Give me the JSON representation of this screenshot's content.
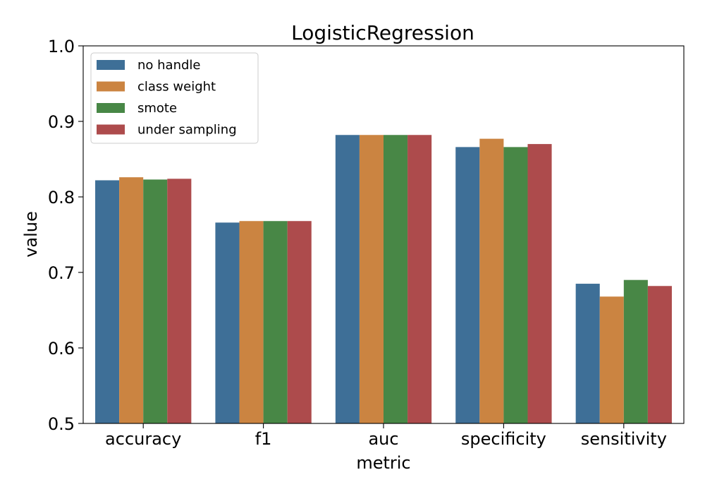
{
  "chart_data": {
    "type": "bar",
    "title": "LogisticRegression",
    "xlabel": "metric",
    "ylabel": "value",
    "ylim": [
      0.5,
      1.0
    ],
    "yticks": [
      "0.5",
      "0.6",
      "0.7",
      "0.8",
      "0.9",
      "1.0"
    ],
    "grid": false,
    "legend_position": "top-left",
    "categories": [
      "accuracy",
      "f1",
      "auc",
      "specificity",
      "sensitivity"
    ],
    "series": [
      {
        "name": "no handle",
        "color": "#3e6f97",
        "values": [
          0.822,
          0.766,
          0.882,
          0.866,
          0.685
        ]
      },
      {
        "name": "class weight",
        "color": "#cb8441",
        "values": [
          0.826,
          0.768,
          0.882,
          0.877,
          0.668
        ]
      },
      {
        "name": "smote",
        "color": "#488746",
        "values": [
          0.823,
          0.768,
          0.882,
          0.866,
          0.69
        ]
      },
      {
        "name": "under sampling",
        "color": "#ad4b4c",
        "values": [
          0.824,
          0.768,
          0.882,
          0.87,
          0.682
        ]
      }
    ]
  }
}
